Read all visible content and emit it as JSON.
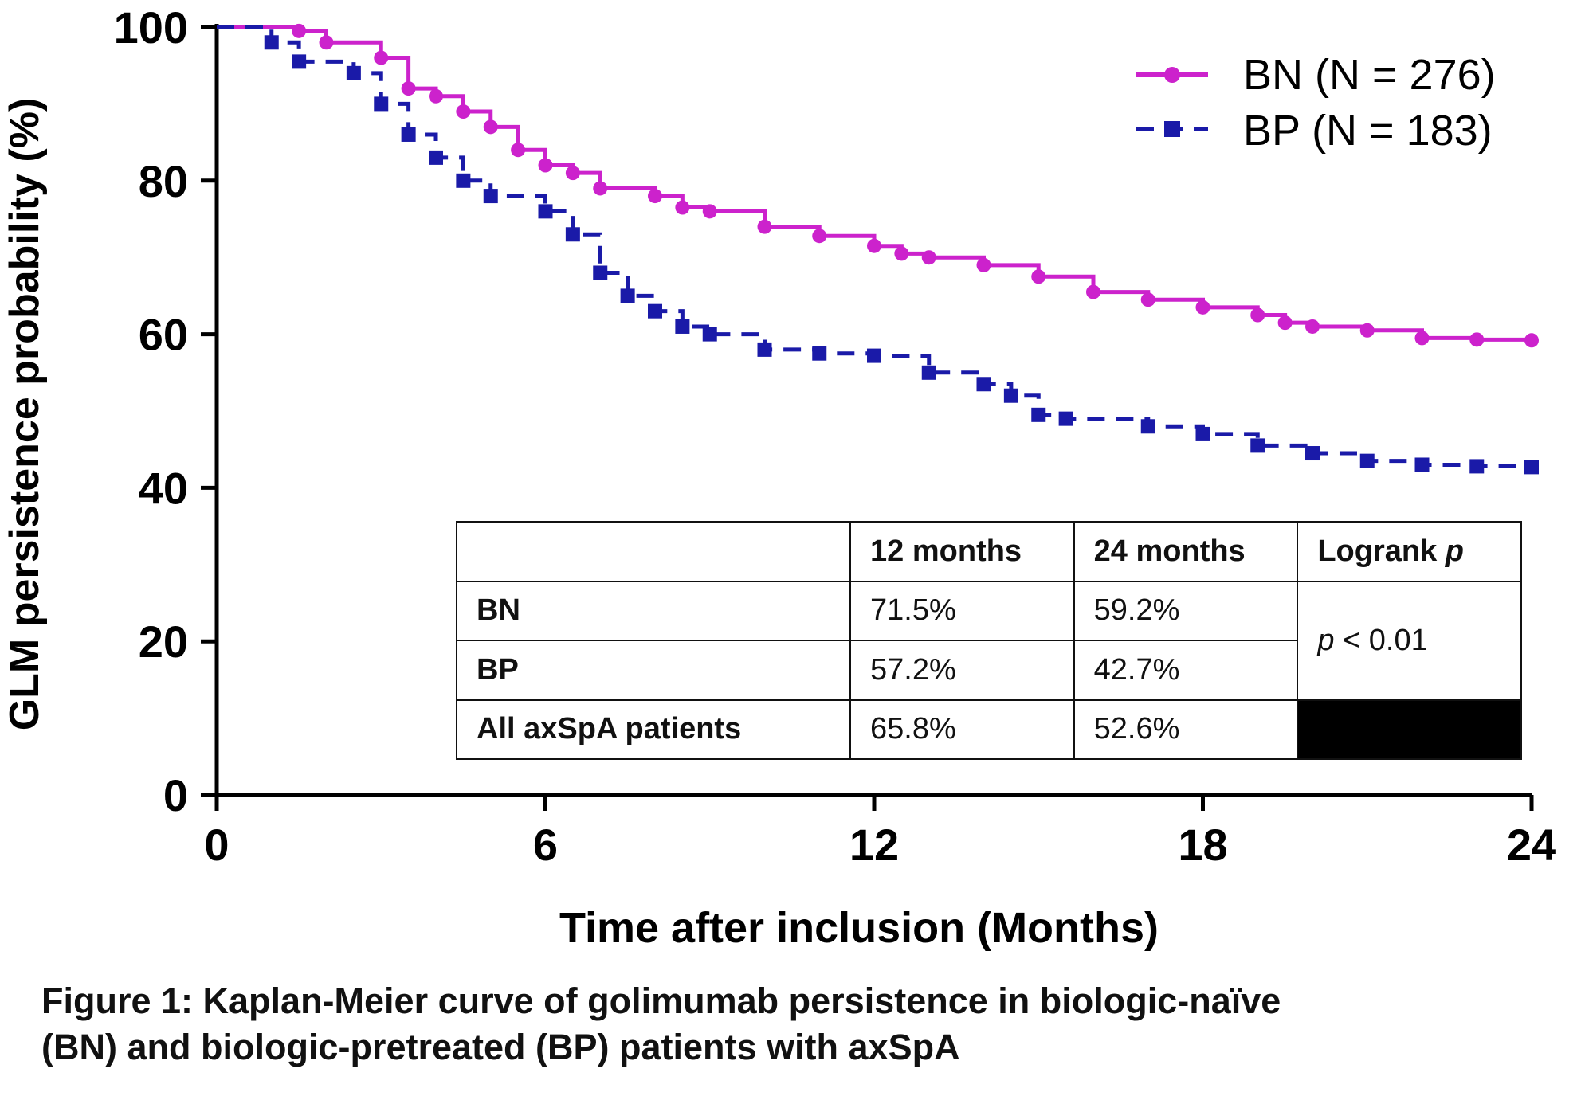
{
  "chart_data": {
    "type": "line",
    "xlabel": "Time after inclusion (Months)",
    "ylabel": "GLM persistence probability (%)",
    "xlim": [
      0,
      24
    ],
    "ylim": [
      0,
      100
    ],
    "xticks": [
      "0",
      "6",
      "12",
      "18",
      "24"
    ],
    "yticks": [
      "0",
      "20",
      "40",
      "60",
      "80",
      "100"
    ],
    "legend_position": "top-right",
    "series": [
      {
        "name": "BN (N = 276)",
        "color": "#cc22cc",
        "style": "solid-circle",
        "x": [
          0,
          1.5,
          2,
          3,
          3.5,
          4,
          4.5,
          5,
          5.5,
          6,
          6.5,
          7,
          8,
          8.5,
          9,
          10,
          11,
          12,
          12.5,
          13,
          14,
          15,
          16,
          17,
          18,
          19,
          19.5,
          20,
          21,
          22,
          23,
          24
        ],
        "y": [
          100,
          99.5,
          98,
          96,
          92,
          91,
          89,
          87,
          84,
          82,
          81,
          79,
          78,
          76.5,
          76,
          74,
          72.8,
          71.5,
          70.5,
          70,
          69,
          67.5,
          65.5,
          64.5,
          63.5,
          62.5,
          61.5,
          61,
          60.5,
          59.5,
          59.3,
          59.2
        ]
      },
      {
        "name": "BP (N = 183)",
        "color": "#1a1aa8",
        "style": "dashed-square",
        "x": [
          0,
          1,
          1.5,
          2.5,
          3,
          3.5,
          4,
          4.5,
          5,
          6,
          6.5,
          7,
          7.5,
          8,
          8.5,
          9,
          10,
          11,
          12,
          13,
          14,
          14.5,
          15,
          15.5,
          17,
          18,
          19,
          20,
          21,
          22,
          23,
          24
        ],
        "y": [
          100,
          98,
          95.5,
          94,
          90,
          86,
          83,
          80,
          78,
          76,
          73,
          68,
          65,
          63,
          61,
          60,
          58,
          57.5,
          57.2,
          55,
          53.5,
          52,
          49.5,
          49,
          48,
          47,
          45.5,
          44.5,
          43.5,
          43,
          42.8,
          42.7
        ]
      }
    ]
  },
  "table": {
    "headers": [
      "",
      "12 months",
      "24 months",
      "Logrank p"
    ],
    "header_logrank_main": "Logrank ",
    "header_logrank_p": "p",
    "rows": [
      {
        "label": "BN",
        "m12": "71.5%",
        "m24": "59.2%"
      },
      {
        "label": "BP",
        "m12": "57.2%",
        "m24": "42.7%"
      },
      {
        "label": "All axSpA patients",
        "m12": "65.8%",
        "m24": "52.6%"
      }
    ],
    "pvalue_p": "p",
    "pvalue_rest": " < 0.01"
  },
  "caption": {
    "line1": "Figure 1: Kaplan-Meier curve of golimumab persistence in biologic-naïve",
    "line2": "(BN) and biologic-pretreated (BP) patients with axSpA"
  }
}
